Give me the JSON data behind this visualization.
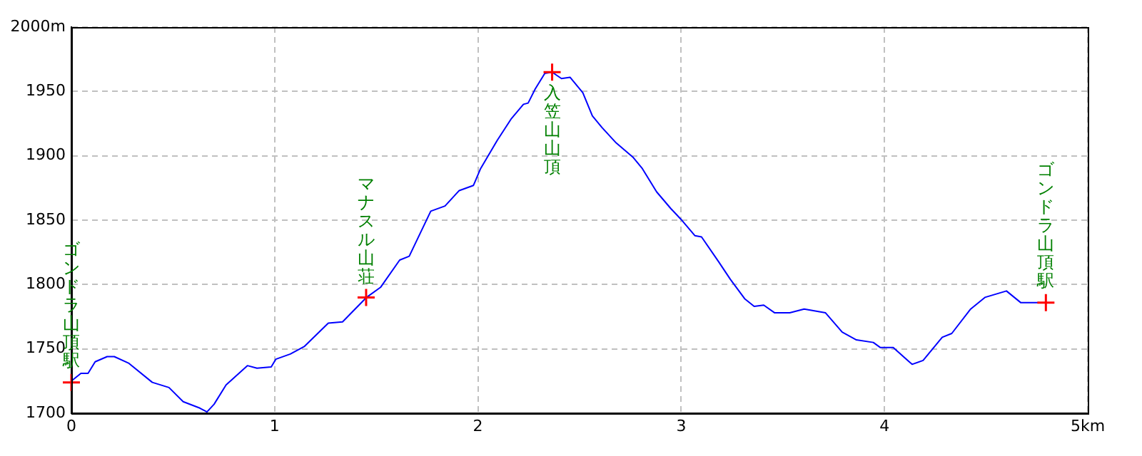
{
  "chart_data": {
    "type": "line",
    "xlim": [
      0,
      5
    ],
    "xticks": [
      0,
      1,
      2,
      3,
      4,
      {
        "value": 5,
        "label": "5km"
      }
    ],
    "ylim": [
      1700,
      2000
    ],
    "yticks": [
      1700,
      1750,
      1800,
      1850,
      1900,
      1950,
      {
        "value": 2000,
        "label": "2000m"
      }
    ],
    "grid": true,
    "legend": false,
    "series": [
      {
        "color": "#0000ff",
        "marker": "none",
        "x": [
          0,
          0.047,
          0.082,
          0.117,
          0.176,
          0.211,
          0.281,
          0.398,
          0.48,
          0.55,
          0.632,
          0.667,
          0.702,
          0.761,
          0.866,
          0.913,
          0.983,
          1.006,
          1.077,
          1.147,
          1.264,
          1.334,
          1.452,
          1.522,
          1.615,
          1.662,
          1.768,
          1.838,
          1.908,
          1.978,
          2.013,
          2.095,
          2.165,
          2.224,
          2.247,
          2.282,
          2.329,
          2.365,
          2.411,
          2.453,
          2.516,
          2.563,
          2.61,
          2.68,
          2.762,
          2.809,
          2.879,
          2.949,
          2.997,
          3.067,
          3.1,
          3.183,
          3.242,
          3.312,
          3.359,
          3.406,
          3.46,
          3.534,
          3.605,
          3.71,
          3.792,
          3.862,
          3.945,
          3.98,
          4.043,
          4.136,
          4.19,
          4.284,
          4.331,
          4.424,
          4.494,
          4.6,
          4.67,
          4.763
        ],
        "values": [
          1725,
          1731,
          1731,
          1740,
          1744,
          1744,
          1739,
          1724,
          1720,
          1709,
          1704,
          1701,
          1707,
          1722,
          1737,
          1735,
          1736,
          1742,
          1746,
          1752,
          1770,
          1771,
          1790,
          1798,
          1819,
          1822,
          1857,
          1861,
          1873,
          1877,
          1890,
          1912,
          1929,
          1940,
          1941,
          1952,
          1964,
          1965,
          1960,
          1961,
          1949,
          1931,
          1922,
          1910,
          1899,
          1890,
          1872,
          1859,
          1851,
          1838,
          1837,
          1818,
          1804,
          1789,
          1783,
          1784,
          1778,
          1778,
          1781,
          1778,
          1763,
          1757,
          1755,
          1751,
          1751,
          1738,
          1741,
          1759,
          1762,
          1781,
          1790,
          1795,
          1786,
          1786
        ]
      },
      {
        "type": "scatter",
        "color": "#ff0000",
        "marker": "cross",
        "x": [
          0,
          1.45,
          2.365,
          4.794
        ],
        "values": [
          1724,
          1790,
          1965,
          1786
        ]
      }
    ],
    "annotations": [
      {
        "text": "ゴンドラ山頂駅",
        "x": 0,
        "y": 1724
      },
      {
        "text": "マナスル山荘",
        "x": 1.45,
        "y": 1790
      },
      {
        "text": "入笠山山頂",
        "x": 2.365,
        "y": 1965
      },
      {
        "text": "ゴンドラ山頂駅",
        "x": 4.794,
        "y": 1786
      }
    ]
  }
}
